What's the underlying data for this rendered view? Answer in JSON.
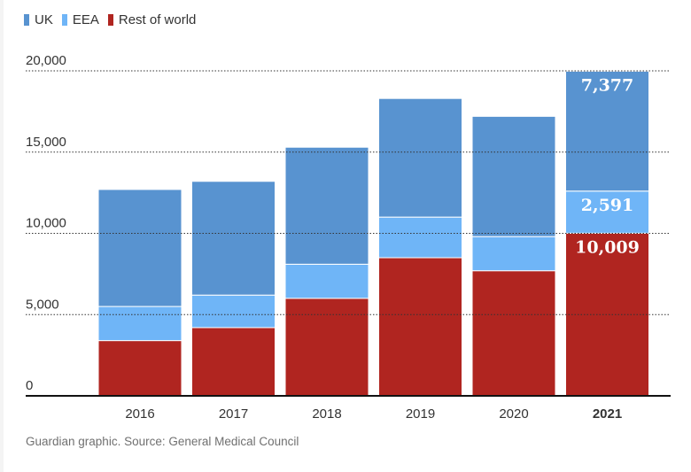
{
  "legend": [
    {
      "label": "UK",
      "color": "#5893d0"
    },
    {
      "label": "EEA",
      "color": "#6fb5f7"
    },
    {
      "label": "Rest of world",
      "color": "#b02520"
    }
  ],
  "source": "Guardian graphic. Source: General Medical Council",
  "chart_data": {
    "type": "bar",
    "stacked": true,
    "categories": [
      "2016",
      "2017",
      "2018",
      "2019",
      "2020",
      "2021"
    ],
    "series": [
      {
        "name": "Rest of world",
        "color": "#b02520",
        "values": [
          3400,
          4200,
          6000,
          8500,
          7700,
          10009
        ]
      },
      {
        "name": "EEA",
        "color": "#6fb5f7",
        "values": [
          2100,
          2000,
          2100,
          2500,
          2100,
          2591
        ]
      },
      {
        "name": "UK",
        "color": "#5893d0",
        "values": [
          7200,
          7000,
          7200,
          7300,
          7400,
          7377
        ]
      }
    ],
    "data_labels": [
      {
        "category": "2021",
        "series": "UK",
        "text": "7,377"
      },
      {
        "category": "2021",
        "series": "EEA",
        "text": "2,591"
      },
      {
        "category": "2021",
        "series": "Rest of world",
        "text": "10,009"
      }
    ],
    "y_ticks": [
      0,
      5000,
      10000,
      15000,
      20000
    ],
    "y_tick_labels": [
      "0",
      "5,000",
      "10,000",
      "15,000",
      "20,000"
    ],
    "ylim": [
      0,
      20000
    ],
    "highlight_category": "2021",
    "title": "",
    "xlabel": "",
    "ylabel": ""
  }
}
